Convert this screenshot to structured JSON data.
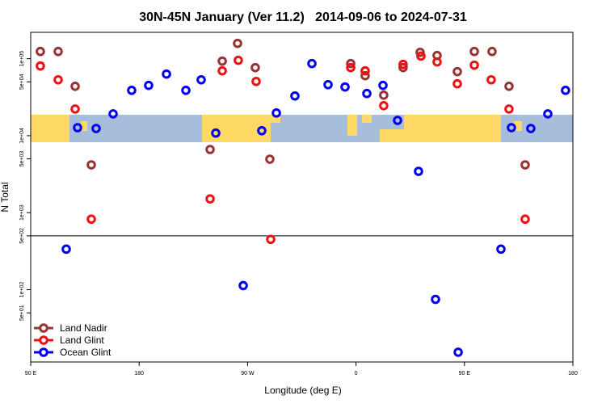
{
  "chart_data": {
    "type": "scatter",
    "title": "30N-45N January (Ver 11.2)   2014-09-06 to 2024-07-31",
    "xlabel": "Longitude (deg E)",
    "ylabel": "N Total",
    "xlim": [
      90,
      540
    ],
    "ylim": [
      11.5,
      220000
    ],
    "ylog": true,
    "reference_line": 500,
    "legend": "bottom-left",
    "xticks": [
      {
        "value": 90,
        "label": "90 E"
      },
      {
        "value": 180,
        "label": "180"
      },
      {
        "value": 270,
        "label": "90 W"
      },
      {
        "value": 360,
        "label": "0"
      },
      {
        "value": 450,
        "label": "90 E"
      },
      {
        "value": 540,
        "label": "180"
      }
    ],
    "yticks": [
      {
        "value": 50,
        "label": "5e+01"
      },
      {
        "value": 100,
        "label": "1e+02"
      },
      {
        "value": 500,
        "label": "5e+02"
      },
      {
        "value": 1000,
        "label": "1e+03"
      },
      {
        "value": 5000,
        "label": "5e+03"
      },
      {
        "value": 10000,
        "label": "1e+04"
      },
      {
        "value": 50000,
        "label": "5e+04"
      },
      {
        "value": 100000,
        "label": "1e+05"
      }
    ],
    "series": [
      {
        "name": "Land Nadir",
        "color": "#993333",
        "x": [
          98,
          112.8,
          126.9,
          140.3,
          238.9,
          249,
          261.7,
          276.4,
          288.5,
          355.6,
          367.6,
          383,
          399.1,
          413.2,
          427.3,
          444.1,
          458.2,
          472.9,
          487,
          500.4
        ],
        "values": [
          124000,
          124000,
          43800,
          4180,
          6620,
          93000,
          158000,
          76600,
          4950,
          86400,
          60100,
          33600,
          76600,
          121000,
          110000,
          67900,
          124000,
          124000,
          43800,
          4180
        ]
      },
      {
        "name": "Land Glint",
        "color": "#ee1111",
        "x": [
          98,
          112.8,
          126.9,
          140.3,
          238.9,
          249,
          262.3,
          277.1,
          289.2,
          355.6,
          367.6,
          383,
          399.1,
          413.9,
          427.3,
          444.1,
          458.2,
          472.2,
          487,
          500.4
        ],
        "values": [
          80400,
          53200,
          22200,
          824,
          1510,
          69500,
          95300,
          50700,
          450,
          76600,
          69500,
          24500,
          84400,
          108000,
          90800,
          47200,
          82400,
          53200,
          22200,
          824
        ]
      },
      {
        "name": "Ocean Glint",
        "color": "#0000ee",
        "x": [
          119.5,
          128.9,
          144.3,
          158.4,
          173.8,
          187.9,
          202.7,
          218.8,
          231.5,
          243.6,
          266.4,
          281.8,
          293.9,
          309.3,
          323.4,
          336.8,
          350.9,
          369,
          382.4,
          394.5,
          411.9,
          426,
          444.8,
          480.3,
          489,
          505.1,
          519.2,
          533.9
        ],
        "values": [
          336,
          12700,
          12400,
          19200,
          38800,
          45000,
          63100,
          38800,
          53200,
          10800,
          113,
          11600,
          19700,
          32800,
          86400,
          46000,
          42900,
          35300,
          45000,
          15800,
          3440,
          74.8,
          15.4,
          336,
          12700,
          12400,
          19200,
          38800
        ]
      }
    ]
  }
}
